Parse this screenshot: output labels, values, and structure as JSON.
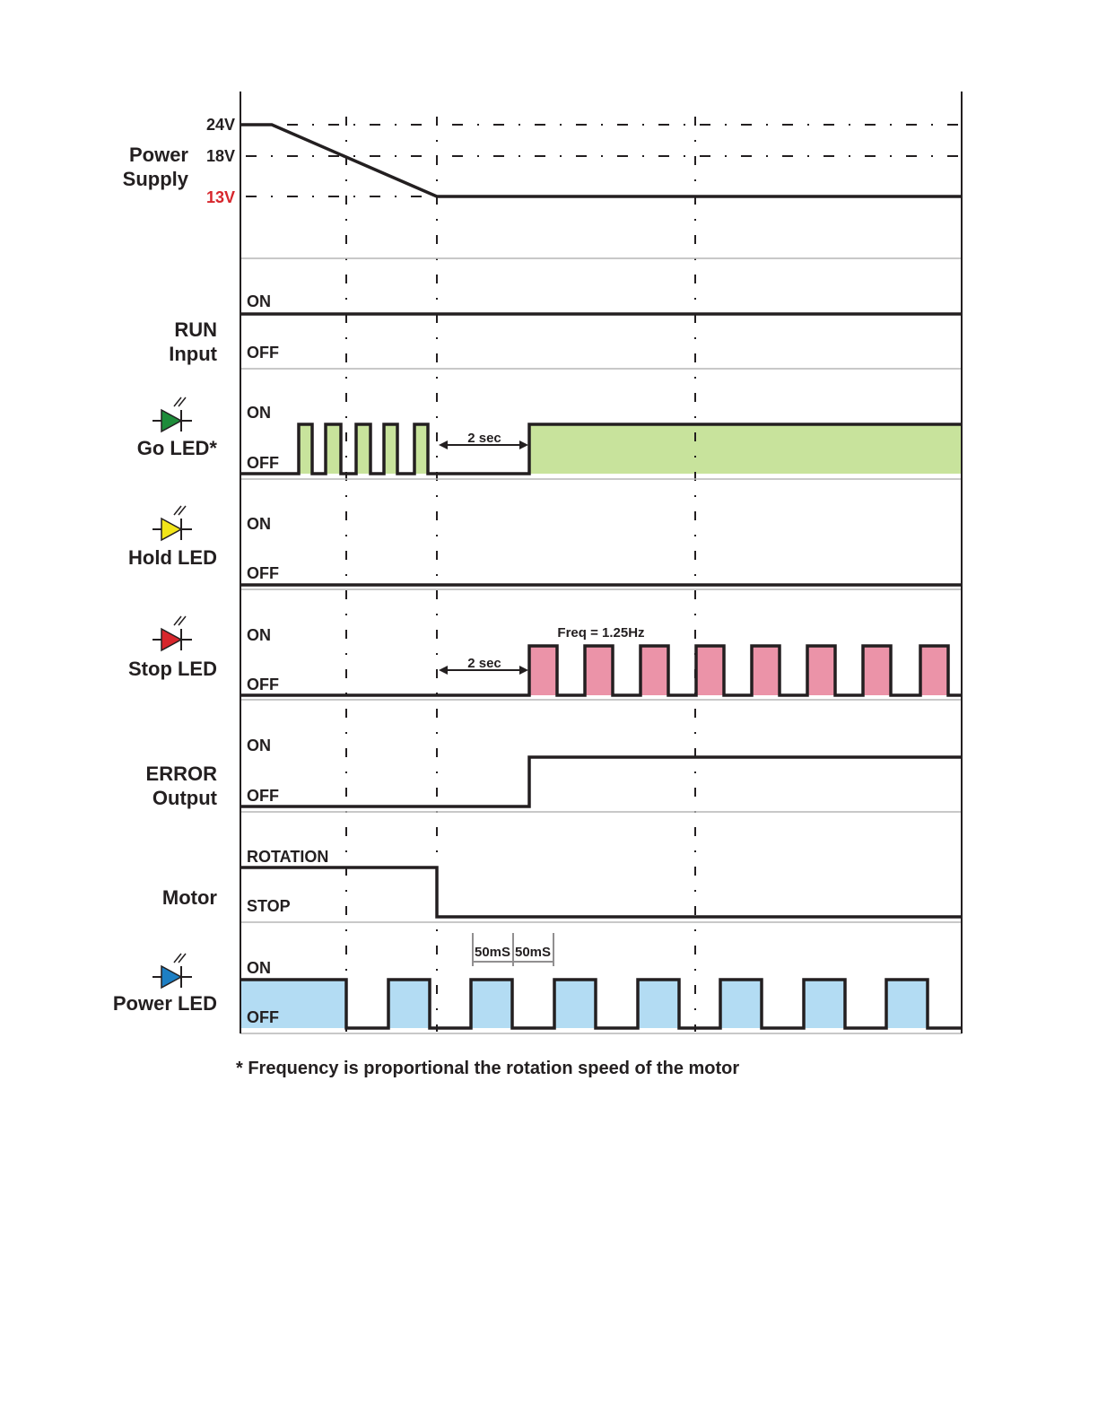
{
  "power_supply": {
    "label_line1": "Power",
    "label_line2": "Supply",
    "levels": [
      "24V",
      "18V",
      "13V"
    ],
    "low_level_color": "#d7262c"
  },
  "run_input": {
    "label_line1": "RUN",
    "label_line2": "Input",
    "on": "ON",
    "off": "OFF"
  },
  "go_led": {
    "label": "Go LED*",
    "on": "ON",
    "off": "OFF",
    "delay": "2 sec",
    "color": "#1e8c3a",
    "fill": "#c8e39c"
  },
  "hold_led": {
    "label": "Hold LED",
    "on": "ON",
    "off": "OFF",
    "color": "#f2e519"
  },
  "stop_led": {
    "label": "Stop LED",
    "on": "ON",
    "off": "OFF",
    "delay": "2 sec",
    "freq": "Freq = 1.25Hz",
    "color": "#d7262c",
    "fill": "#eb93a8"
  },
  "error_output": {
    "label_line1": "ERROR",
    "label_line2": "Output",
    "on": "ON",
    "off": "OFF"
  },
  "motor": {
    "label": "Motor",
    "on": "ROTATION",
    "off": "STOP"
  },
  "power_led": {
    "label": "Power LED",
    "on": "ON",
    "off": "OFF",
    "interval_1": "50mS",
    "interval_2": "50mS",
    "color": "#1d7fc4",
    "fill": "#b3dcf3"
  },
  "footnote": "* Frequency is proportional the rotation speed of the motor"
}
